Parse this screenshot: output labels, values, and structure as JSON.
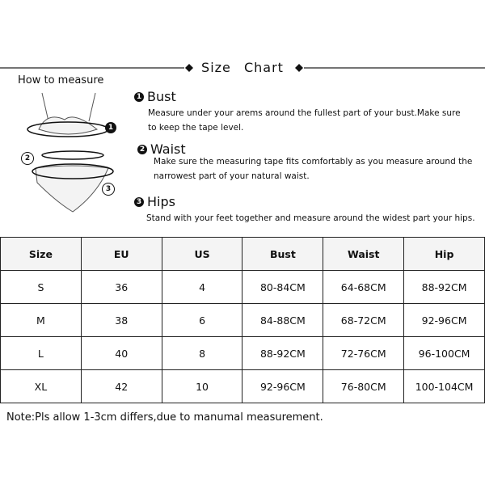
{
  "header": {
    "title": "Size Chart",
    "subtitle": "How to measure"
  },
  "items": [
    {
      "number": "1",
      "title": "Bust",
      "lines": [
        "Measure under your arems around the fullest part of your bust.Make sure",
        "to keep the tape level."
      ]
    },
    {
      "number": "2",
      "title": "Waist",
      "lines": [
        "Make sure the measuring tape fits comfortably as you measure around the",
        "narrowest part of your natural waist."
      ]
    },
    {
      "number": "3",
      "title": "Hips",
      "lines": [
        "Stand with your feet together and measure around the widest part your hips."
      ]
    }
  ],
  "table": {
    "columns": [
      "Size",
      "EU",
      "US",
      "Bust",
      "Waist",
      "Hip"
    ],
    "rows": [
      [
        "S",
        36,
        4,
        "80-84CM",
        "64-68CM",
        "88-92CM"
      ],
      [
        "M",
        38,
        6,
        "84-88CM",
        "68-72CM",
        "92-96CM"
      ],
      [
        "L",
        40,
        8,
        "88-92CM",
        "72-76CM",
        "96-100CM"
      ],
      [
        "XL",
        42,
        10,
        "92-96CM",
        "76-80CM",
        "100-104CM"
      ]
    ]
  },
  "note": "Note:Pls allow 1-3cm differs,due to manumal measurement."
}
